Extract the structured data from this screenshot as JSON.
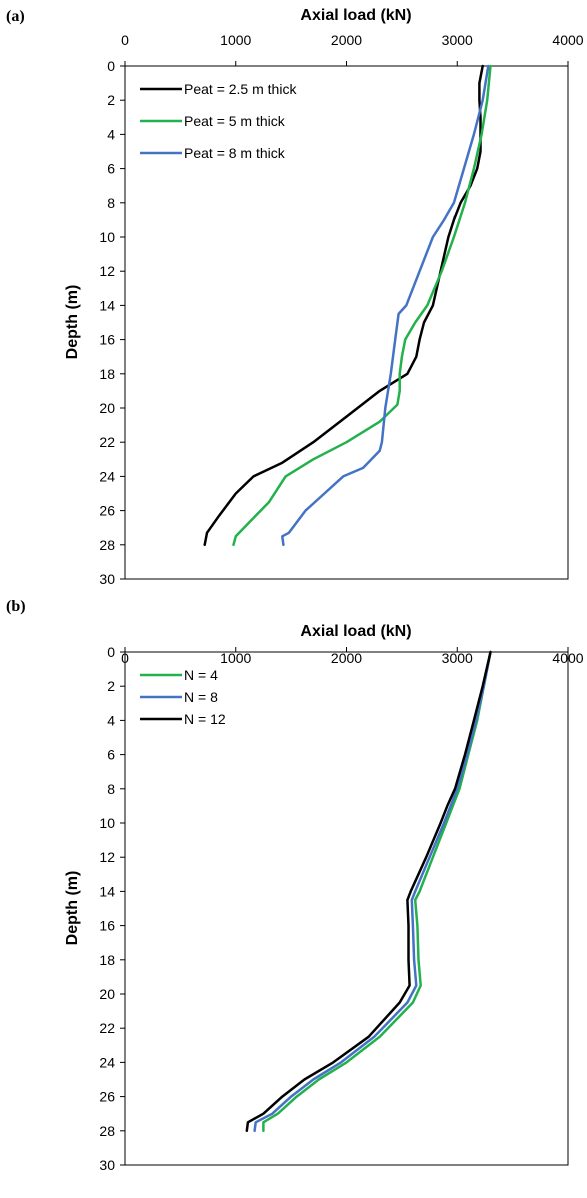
{
  "chart_data": [
    {
      "panel_label": "(a)",
      "type": "line",
      "xlabel": "Axial load (kN)",
      "ylabel": "Depth (m)",
      "xlim": [
        0,
        4000
      ],
      "ylim": [
        0,
        30
      ],
      "y_inverted": true,
      "x_axis_position": "top",
      "xticks": [
        "0",
        "1000",
        "2000",
        "3000",
        "4000"
      ],
      "yticks": [
        "0",
        "2",
        "4",
        "6",
        "8",
        "10",
        "12",
        "14",
        "16",
        "18",
        "20",
        "22",
        "24",
        "26",
        "28",
        "30"
      ],
      "grid": false,
      "legend_position": "top-left",
      "series": [
        {
          "name": "Peat = 2.5 m thick",
          "color": "#000000",
          "points": [
            [
              3230,
              0
            ],
            [
              3200,
              1
            ],
            [
              3200,
              2
            ],
            [
              3210,
              3
            ],
            [
              3210,
              5
            ],
            [
              3180,
              6
            ],
            [
              3120,
              7
            ],
            [
              3030,
              8
            ],
            [
              2970,
              9
            ],
            [
              2980,
              8.8
            ],
            [
              2920,
              10
            ],
            [
              2850,
              12
            ],
            [
              2780,
              14
            ],
            [
              2700,
              15
            ],
            [
              2660,
              16
            ],
            [
              2630,
              17
            ],
            [
              2550,
              18
            ],
            [
              2300,
              19
            ],
            [
              2000,
              20.5
            ],
            [
              1700,
              22
            ],
            [
              1420,
              23.2
            ],
            [
              1160,
              24
            ],
            [
              1000,
              25
            ],
            [
              850,
              26.3
            ],
            [
              740,
              27.3
            ],
            [
              720,
              28
            ]
          ]
        },
        {
          "name": "Peat = 5 m thick",
          "color": "#22b14c",
          "points": [
            [
              3300,
              0
            ],
            [
              3270,
              2
            ],
            [
              3220,
              4
            ],
            [
              3150,
              6
            ],
            [
              3070,
              8
            ],
            [
              2970,
              10
            ],
            [
              2860,
              12
            ],
            [
              2730,
              14
            ],
            [
              2620,
              15
            ],
            [
              2530,
              16
            ],
            [
              2500,
              17
            ],
            [
              2480,
              18
            ],
            [
              2480,
              19
            ],
            [
              2460,
              19.8
            ],
            [
              2300,
              20.8
            ],
            [
              2000,
              22
            ],
            [
              1700,
              23
            ],
            [
              1450,
              24
            ],
            [
              1300,
              25.5
            ],
            [
              1150,
              26.5
            ],
            [
              1000,
              27.5
            ],
            [
              980,
              28
            ]
          ]
        },
        {
          "name": "Peat = 8 m thick",
          "color": "#4472c4",
          "points": [
            [
              3280,
              0
            ],
            [
              3230,
              2
            ],
            [
              3150,
              4
            ],
            [
              3060,
              6
            ],
            [
              2970,
              8
            ],
            [
              2880,
              9
            ],
            [
              2780,
              10
            ],
            [
              2660,
              12
            ],
            [
              2540,
              14
            ],
            [
              2470,
              14.5
            ],
            [
              2440,
              16
            ],
            [
              2400,
              18
            ],
            [
              2350,
              20
            ],
            [
              2320,
              22
            ],
            [
              2300,
              22.5
            ],
            [
              2150,
              23.5
            ],
            [
              1970,
              24
            ],
            [
              1800,
              25
            ],
            [
              1630,
              26
            ],
            [
              1480,
              27.3
            ],
            [
              1420,
              27.5
            ],
            [
              1430,
              28
            ]
          ]
        }
      ]
    },
    {
      "panel_label": "(b)",
      "type": "line",
      "xlabel": "Axial load (kN)",
      "ylabel": "Depth (m)",
      "xlim": [
        0,
        4000
      ],
      "ylim": [
        0,
        30
      ],
      "y_inverted": true,
      "x_axis_position": "top",
      "xticks": [
        "0",
        "1000",
        "2000",
        "3000",
        "4000"
      ],
      "yticks": [
        "0",
        "2",
        "4",
        "6",
        "8",
        "10",
        "12",
        "14",
        "16",
        "18",
        "20",
        "22",
        "24",
        "26",
        "28",
        "30"
      ],
      "grid": false,
      "legend_position": "top-left",
      "series": [
        {
          "name": "N = 4",
          "color": "#22b14c",
          "points": [
            [
              3300,
              0
            ],
            [
              3240,
              2
            ],
            [
              3180,
              4
            ],
            [
              3100,
              6
            ],
            [
              3020,
              8
            ],
            [
              2960,
              9
            ],
            [
              2900,
              10
            ],
            [
              2780,
              12
            ],
            [
              2660,
              14
            ],
            [
              2620,
              14.5
            ],
            [
              2640,
              16
            ],
            [
              2650,
              18
            ],
            [
              2670,
              19.5
            ],
            [
              2600,
              20.5
            ],
            [
              2300,
              22.5
            ],
            [
              2000,
              24
            ],
            [
              1750,
              25
            ],
            [
              1550,
              26
            ],
            [
              1380,
              27
            ],
            [
              1250,
              27.5
            ],
            [
              1250,
              28
            ]
          ]
        },
        {
          "name": "N = 8",
          "color": "#4472c4",
          "points": [
            [
              3300,
              0
            ],
            [
              3240,
              2
            ],
            [
              3170,
              4
            ],
            [
              3090,
              6
            ],
            [
              3000,
              8
            ],
            [
              2940,
              9
            ],
            [
              2880,
              10
            ],
            [
              2750,
              12
            ],
            [
              2620,
              14
            ],
            [
              2590,
              14.5
            ],
            [
              2600,
              16
            ],
            [
              2610,
              18
            ],
            [
              2630,
              19.5
            ],
            [
              2550,
              20.5
            ],
            [
              2250,
              22.5
            ],
            [
              1950,
              24
            ],
            [
              1700,
              25
            ],
            [
              1500,
              26
            ],
            [
              1330,
              27
            ],
            [
              1180,
              27.5
            ],
            [
              1170,
              28
            ]
          ]
        },
        {
          "name": "N = 12",
          "color": "#000000",
          "points": [
            [
              3300,
              0
            ],
            [
              3230,
              2
            ],
            [
              3150,
              4
            ],
            [
              3070,
              6
            ],
            [
              2980,
              8
            ],
            [
              2910,
              9
            ],
            [
              2850,
              10
            ],
            [
              2720,
              12
            ],
            [
              2580,
              14
            ],
            [
              2550,
              14.5
            ],
            [
              2560,
              16
            ],
            [
              2560,
              18
            ],
            [
              2570,
              19.5
            ],
            [
              2480,
              20.5
            ],
            [
              2200,
              22.5
            ],
            [
              1880,
              24
            ],
            [
              1620,
              25
            ],
            [
              1420,
              26
            ],
            [
              1250,
              27
            ],
            [
              1110,
              27.5
            ],
            [
              1100,
              28
            ]
          ]
        }
      ]
    }
  ]
}
